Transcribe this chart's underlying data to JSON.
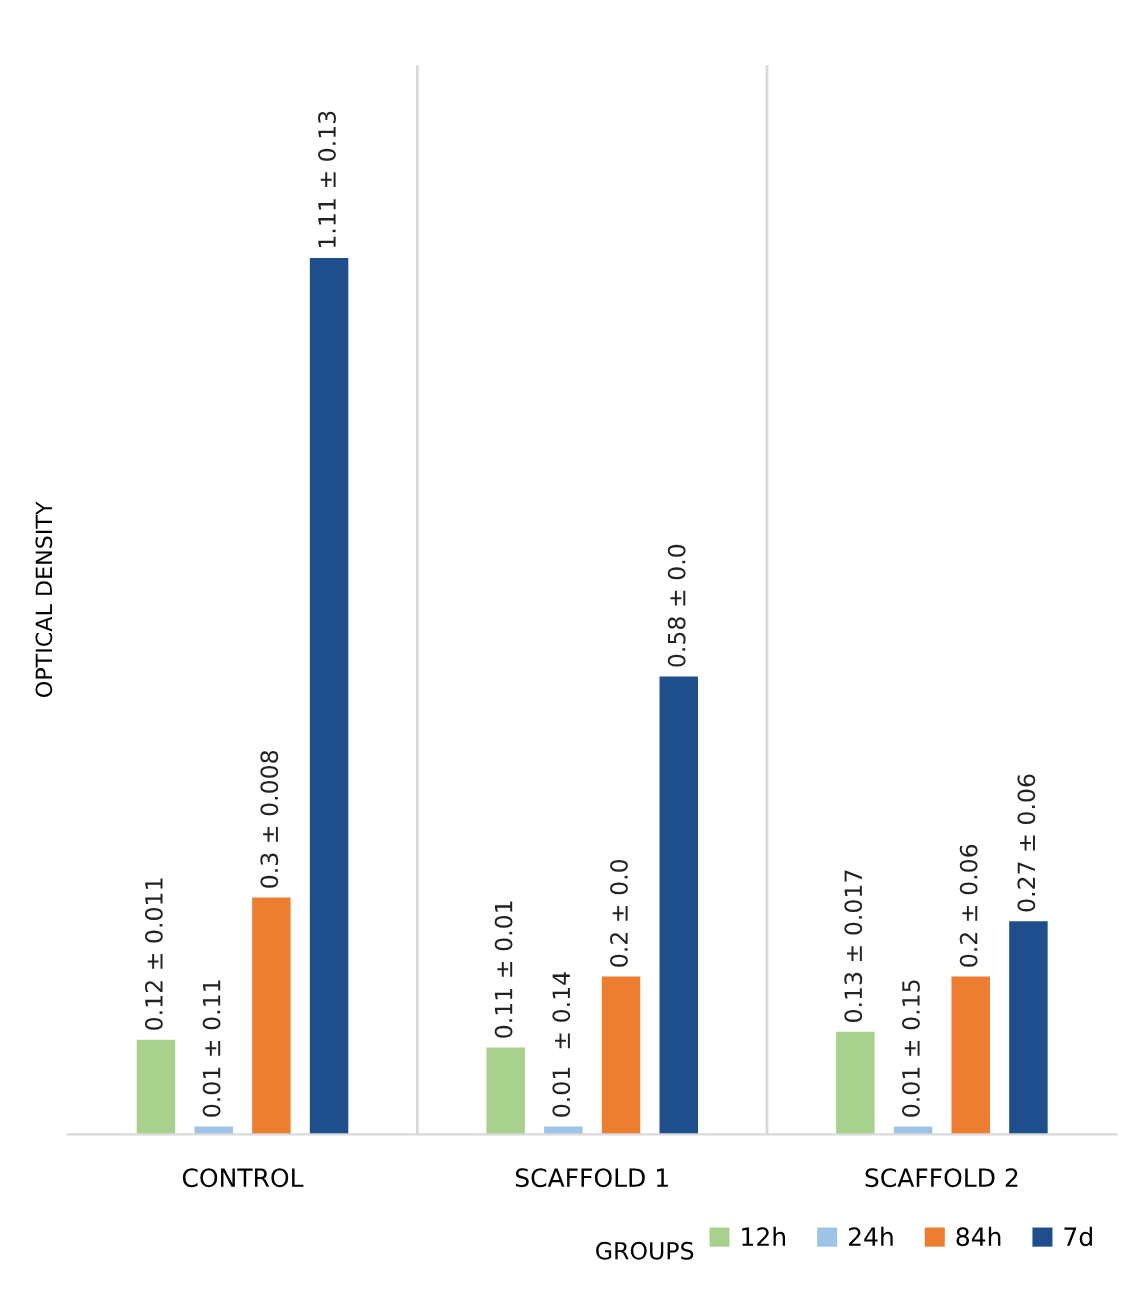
{
  "chart_data": {
    "type": "bar",
    "ylabel": "OPTICAL DENSITY",
    "xlabel": "GROUPS",
    "categories": [
      "CONTROL",
      "SCAFFOLD 1",
      "SCAFFOLD 2"
    ],
    "series": [
      {
        "name": "12h",
        "color": "#a9d18e",
        "values": [
          0.12,
          0.11,
          0.13
        ],
        "value_labels": [
          "0.12 ± 0.011",
          "0.11 ± 0.01",
          "0.13 ± 0.017"
        ]
      },
      {
        "name": "24h",
        "color": "#9dc3e6",
        "values": [
          0.01,
          0.01,
          0.01
        ],
        "value_labels": [
          "0.01 ± 0.11",
          "0.01  ± 0.14",
          "0.01 ± 0.15"
        ]
      },
      {
        "name": "84h",
        "color": "#ed7d31",
        "values": [
          0.3,
          0.2,
          0.2
        ],
        "value_labels": [
          "0.3 ± 0.008",
          "0.2 ± 0.0",
          "0.2 ± 0.06"
        ]
      },
      {
        "name": "7d",
        "color": "#1f4e8c",
        "values": [
          1.11,
          0.58,
          0.27
        ],
        "value_labels": [
          "1.11 ± 0.13",
          "0.58 ± 0.0",
          "0.27 ± 0.06"
        ]
      }
    ],
    "relative": false,
    "grid": false,
    "legend": "bottom right"
  }
}
